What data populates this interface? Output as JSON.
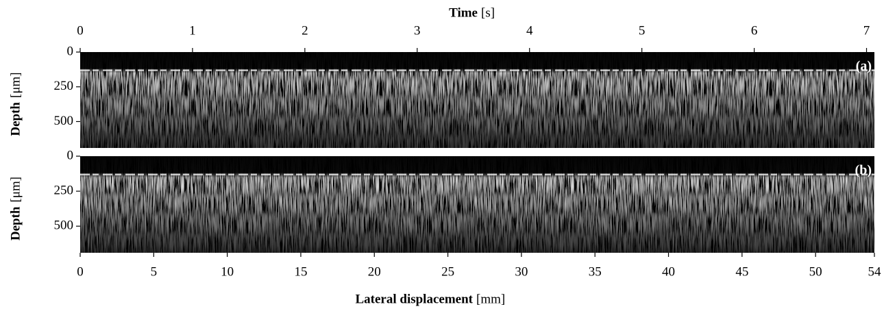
{
  "chart_data": {
    "type": "image",
    "top_xlabel": "Time",
    "top_xlabel_unit": "[s]",
    "x2lim": [
      0,
      7.07
    ],
    "x2ticks": [
      0,
      1,
      2,
      3,
      4,
      5,
      6,
      7
    ],
    "xlabel": "Lateral displacement",
    "xlabel_unit": "[mm]",
    "xlim": [
      0,
      54
    ],
    "xticks": [
      0,
      5,
      10,
      15,
      20,
      25,
      30,
      35,
      40,
      45,
      50,
      54
    ],
    "panels": [
      {
        "label": "(a)",
        "ylabel": "Depth",
        "ylabel_unit": "[μm]",
        "ylim": [
          690,
          0
        ],
        "yticks": [
          0,
          250,
          500
        ]
      },
      {
        "label": "(b)",
        "ylabel": "Depth",
        "ylabel_unit": "[μm]",
        "ylim": [
          690,
          0
        ],
        "yticks": [
          0,
          250,
          500
        ]
      }
    ]
  }
}
